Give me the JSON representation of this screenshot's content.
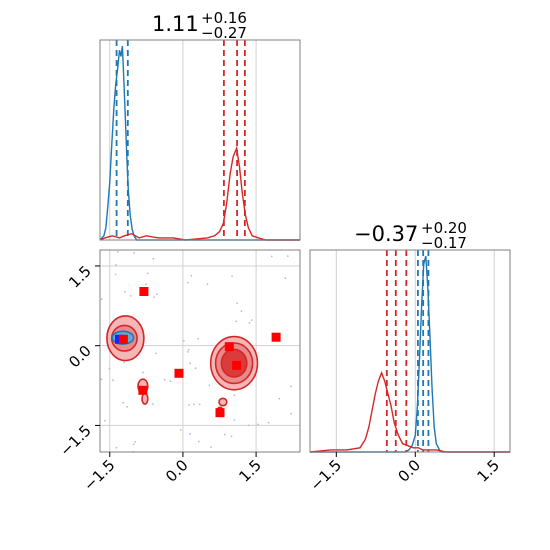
{
  "chart_data": {
    "type": "corner",
    "parameters": [
      {
        "title": {
          "value": "1.11",
          "upper": "+0.16",
          "lower": "−0.27"
        },
        "range": [
          -1.7,
          2.4
        ],
        "ticks": [
          -1.5,
          0.0,
          1.5
        ],
        "tick_labels": [
          "−1.5",
          "0.0",
          "1.5"
        ]
      },
      {
        "title": {
          "value": "−0.37",
          "upper": "+0.20",
          "lower": "−0.17"
        },
        "range": [
          -2.0,
          1.8
        ],
        "ticks": [
          -1.5,
          0.0,
          1.5
        ],
        "tick_labels": [
          "−1.5",
          "0.0",
          "1.5"
        ]
      }
    ],
    "series": [
      {
        "color": "#1f77b4",
        "p1_quantiles": [
          -1.36,
          -1.25,
          -1.13
        ],
        "p2_quantiles": [
          0.05,
          0.15,
          0.25
        ],
        "p1_hist": [
          [
            -1.7,
            0
          ],
          [
            -1.62,
            2
          ],
          [
            -1.58,
            6
          ],
          [
            -1.54,
            16
          ],
          [
            -1.5,
            28
          ],
          [
            -1.46,
            45
          ],
          [
            -1.42,
            62
          ],
          [
            -1.38,
            74
          ],
          [
            -1.34,
            82
          ],
          [
            -1.3,
            91
          ],
          [
            -1.27,
            88
          ],
          [
            -1.24,
            93
          ],
          [
            -1.21,
            76
          ],
          [
            -1.18,
            58
          ],
          [
            -1.15,
            40
          ],
          [
            -1.12,
            24
          ],
          [
            -1.08,
            12
          ],
          [
            -1.04,
            5
          ],
          [
            -1.0,
            2
          ],
          [
            -0.95,
            0
          ],
          [
            2.4,
            0
          ]
        ],
        "p2_hist": [
          [
            -2.0,
            0
          ],
          [
            -0.2,
            0
          ],
          [
            -0.12,
            1
          ],
          [
            -0.06,
            3
          ],
          [
            0.0,
            8
          ],
          [
            0.04,
            22
          ],
          [
            0.08,
            45
          ],
          [
            0.12,
            70
          ],
          [
            0.16,
            90
          ],
          [
            0.2,
            94
          ],
          [
            0.24,
            78
          ],
          [
            0.28,
            55
          ],
          [
            0.32,
            30
          ],
          [
            0.36,
            12
          ],
          [
            0.4,
            4
          ],
          [
            0.46,
            1
          ],
          [
            0.5,
            0
          ],
          [
            1.8,
            0
          ]
        ]
      },
      {
        "color": "#d62728",
        "p1_quantiles": [
          0.84,
          1.11,
          1.27
        ],
        "p2_quantiles": [
          -0.54,
          -0.37,
          -0.17
        ],
        "p1_hist": [
          [
            -1.7,
            0
          ],
          [
            -1.6,
            1
          ],
          [
            -1.45,
            2
          ],
          [
            -1.3,
            1
          ],
          [
            -1.2,
            2
          ],
          [
            -1.05,
            3
          ],
          [
            -0.9,
            1
          ],
          [
            -0.75,
            2
          ],
          [
            -0.5,
            1
          ],
          [
            -0.2,
            1
          ],
          [
            0.05,
            0
          ],
          [
            0.5,
            1
          ],
          [
            0.65,
            2
          ],
          [
            0.75,
            4
          ],
          [
            0.83,
            8
          ],
          [
            0.9,
            18
          ],
          [
            0.97,
            32
          ],
          [
            1.03,
            40
          ],
          [
            1.1,
            44
          ],
          [
            1.16,
            35
          ],
          [
            1.22,
            22
          ],
          [
            1.28,
            12
          ],
          [
            1.34,
            6
          ],
          [
            1.42,
            2
          ],
          [
            1.55,
            1
          ],
          [
            1.7,
            0
          ],
          [
            2.4,
            0
          ]
        ],
        "p2_hist": [
          [
            -2.0,
            0
          ],
          [
            -1.6,
            1
          ],
          [
            -1.3,
            1
          ],
          [
            -1.05,
            2
          ],
          [
            -0.95,
            6
          ],
          [
            -0.88,
            12
          ],
          [
            -0.82,
            20
          ],
          [
            -0.76,
            28
          ],
          [
            -0.7,
            34
          ],
          [
            -0.64,
            38
          ],
          [
            -0.58,
            34
          ],
          [
            -0.52,
            28
          ],
          [
            -0.46,
            22
          ],
          [
            -0.4,
            14
          ],
          [
            -0.32,
            8
          ],
          [
            -0.24,
            4
          ],
          [
            -0.14,
            3
          ],
          [
            -0.04,
            2
          ],
          [
            0.06,
            2
          ],
          [
            0.14,
            1
          ],
          [
            0.24,
            1
          ],
          [
            0.4,
            1
          ],
          [
            0.6,
            0
          ],
          [
            1.8,
            0
          ]
        ]
      }
    ],
    "markers": [
      {
        "x": -1.3,
        "y": 0.12,
        "color": "#1f1fff"
      },
      {
        "x": -1.22,
        "y": 0.12,
        "color": "#ff0000"
      },
      {
        "x": -0.8,
        "y": 1.02,
        "color": "#ff0000"
      },
      {
        "x": -0.82,
        "y": -0.84,
        "color": "#ff0000"
      },
      {
        "x": -0.08,
        "y": -0.52,
        "color": "#ff0000"
      },
      {
        "x": 0.95,
        "y": -0.02,
        "color": "#ff0000"
      },
      {
        "x": 1.1,
        "y": -0.37,
        "color": "#ff0000"
      },
      {
        "x": 0.76,
        "y": -1.26,
        "color": "#ff0000"
      },
      {
        "x": 1.91,
        "y": 0.16,
        "color": "#ff0000"
      }
    ],
    "contours": [
      {
        "cx": -1.18,
        "cy": 0.14,
        "rx": 0.38,
        "ry": 0.42,
        "fill": "#f4b6b6",
        "stroke": "#d62728"
      },
      {
        "cx": -1.2,
        "cy": 0.14,
        "rx": 0.26,
        "ry": 0.24,
        "fill": "#e98a8a",
        "stroke": "#d62728"
      },
      {
        "cx": -1.23,
        "cy": 0.15,
        "rx": 0.22,
        "ry": 0.12,
        "fill": "#6aa7d6",
        "stroke": "#1f77b4"
      },
      {
        "cx": 1.05,
        "cy": -0.33,
        "rx": 0.48,
        "ry": 0.5,
        "fill": "#f4b6b6",
        "stroke": "#d62728"
      },
      {
        "cx": 1.05,
        "cy": -0.33,
        "rx": 0.38,
        "ry": 0.38,
        "fill": "#e98a8a",
        "stroke": "#d62728"
      },
      {
        "cx": 1.05,
        "cy": -0.33,
        "rx": 0.26,
        "ry": 0.26,
        "fill": "#dc3b3b",
        "stroke": "#d62728"
      },
      {
        "cx": -0.82,
        "cy": -0.76,
        "rx": 0.1,
        "ry": 0.13,
        "fill": "#f4b6b6",
        "stroke": "#d62728"
      },
      {
        "cx": -0.78,
        "cy": -1.0,
        "rx": 0.06,
        "ry": 0.1,
        "fill": "#f4b6b6",
        "stroke": "#d62728"
      },
      {
        "cx": 0.82,
        "cy": -1.06,
        "rx": 0.08,
        "ry": 0.07,
        "fill": "#f4b6b6",
        "stroke": "#d62728"
      },
      {
        "cx": 0.76,
        "cy": -1.24,
        "rx": 0.07,
        "ry": 0.08,
        "fill": "#f4b6b6",
        "stroke": "#d62728"
      }
    ],
    "grid": true
  }
}
